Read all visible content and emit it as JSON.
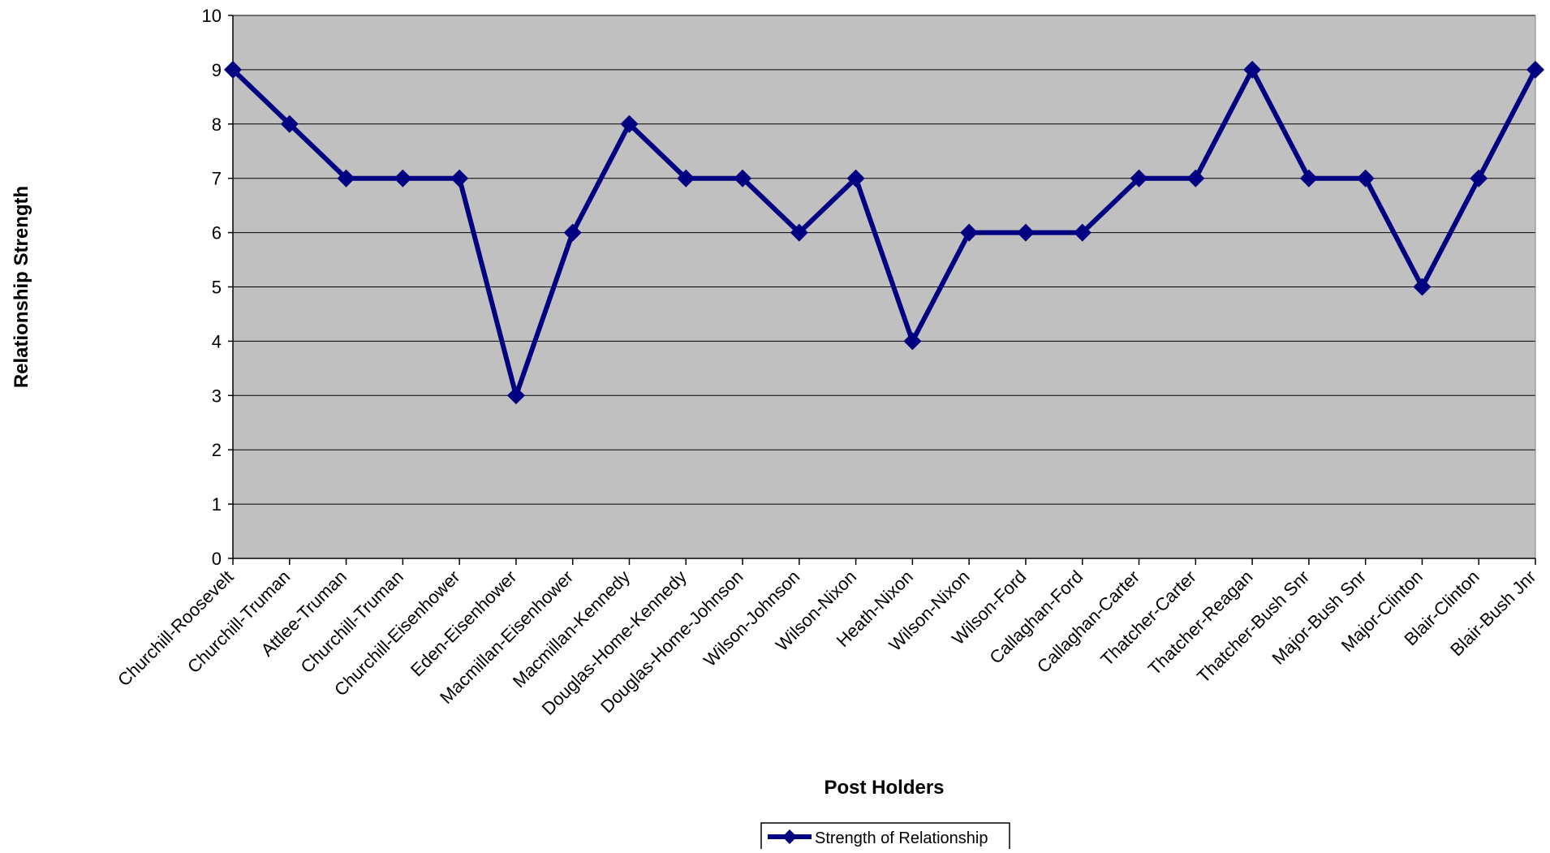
{
  "chart_data": {
    "type": "line",
    "title": "",
    "xlabel": "Post Holders",
    "ylabel": "Relationship Strength",
    "ylim": [
      0,
      10
    ],
    "yticks": [
      0,
      1,
      2,
      3,
      4,
      5,
      6,
      7,
      8,
      9,
      10
    ],
    "grid": true,
    "legend_position": "bottom",
    "categories": [
      "Churchill-Roosevelt",
      "Churchill-Truman",
      "Attlee-Truman",
      "Churchill-Truman",
      "Churchill-Eisenhower",
      "Eden-Eisenhower",
      "Macmillan-Eisenhower",
      "Macmillan-Kennedy",
      "Douglas-Home-Kennedy",
      "Douglas-Home-Johnson",
      "Wilson-Johnson",
      "Wilson-Nixon",
      "Heath-Nixon",
      "Wilson-Nixon",
      "Wilson-Ford",
      "Callaghan-Ford",
      "Callaghan-Carter",
      "Thatcher-Carter",
      "Thatcher-Reagan",
      "Thatcher-Bush Snr",
      "Major-Bush Snr",
      "Major-Clinton",
      "Blair-Clinton",
      "Blair-Bush Jnr"
    ],
    "series": [
      {
        "name": "Strength of Relationship",
        "values": [
          9,
          8,
          7,
          7,
          7,
          3,
          6,
          8,
          7,
          7,
          6,
          7,
          4,
          6,
          6,
          6,
          7,
          7,
          9,
          7,
          7,
          5,
          7,
          9
        ]
      }
    ],
    "colors": {
      "plot_background": "#C0C0C0",
      "series_line": "#000080",
      "gridline": "#000000"
    },
    "marker": "diamond"
  }
}
